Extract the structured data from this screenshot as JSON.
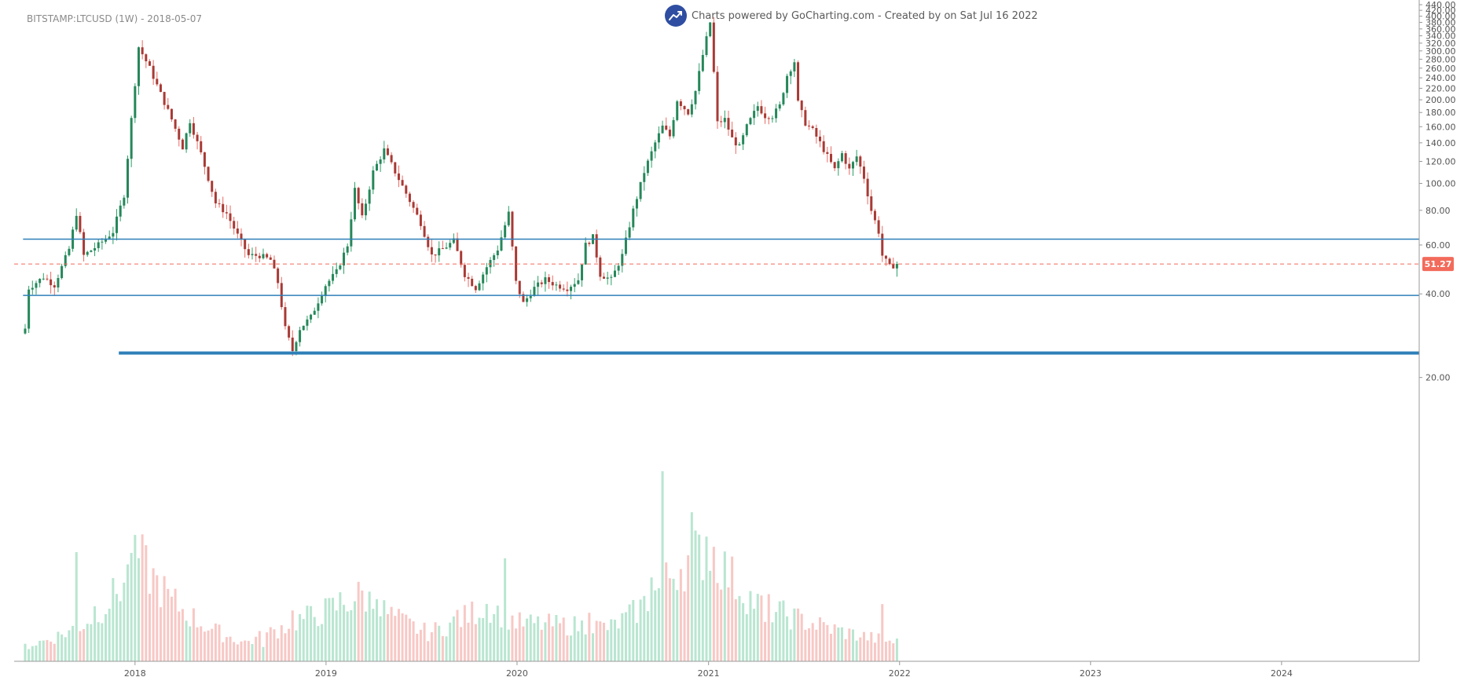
{
  "header": {
    "symbol_title": "BITSTAMP:LTCUSD (1W) - 2018-05-07",
    "watermark_text": "Charts powered by GoCharting.com - Created by  on Sat Jul 16 2022",
    "logo_icon": "chart-trend-icon"
  },
  "colors": {
    "up": "#26875a",
    "down": "#a83a35",
    "up_wick": "#2e9e68",
    "down_wick": "#e86a62",
    "volume_up": "#b9e6d1",
    "volume_down": "#f7c8c5",
    "level_line": "#2e7fb8",
    "last_price": "#f26b5b"
  },
  "chart_data": {
    "type": "candlestick",
    "symbol": "BITSTAMP:LTCUSD",
    "interval": "1W",
    "y_scale": "log",
    "ylim": [
      14.5,
      440
    ],
    "y_ticks": [
      20,
      40,
      60,
      80,
      100,
      120,
      140,
      160,
      180,
      200,
      220,
      240,
      260,
      280,
      300,
      320,
      340,
      360,
      380,
      400,
      420,
      440
    ],
    "x_ticks": [
      "2018",
      "2019",
      "2020",
      "2021",
      "2022",
      "2023",
      "2024"
    ],
    "x_range": [
      "2017-05-15",
      "2024-09-20"
    ],
    "grid": false,
    "last_price": 51.27,
    "last_price_label": "51.27",
    "horizontal_levels": [
      {
        "price": 63,
        "from": "2017-06-01",
        "to": "2024-09-20",
        "weight": "thin"
      },
      {
        "price": 39.5,
        "from": "2017-06-01",
        "to": "2024-09-20",
        "weight": "thin"
      },
      {
        "price": 24.5,
        "from": "2017-12-01",
        "to": "2024-09-20",
        "weight": "thick"
      }
    ],
    "trajectory_start": "2017-06-05",
    "weeks_count": 267,
    "price_path": [
      [
        0,
        30
      ],
      [
        1,
        42
      ],
      [
        5,
        46
      ],
      [
        8,
        43
      ],
      [
        12,
        58
      ],
      [
        14,
        78
      ],
      [
        16,
        55
      ],
      [
        20,
        60
      ],
      [
        24,
        67
      ],
      [
        27,
        91
      ],
      [
        29,
        170
      ],
      [
        31,
        310
      ],
      [
        34,
        260
      ],
      [
        37,
        210
      ],
      [
        40,
        170
      ],
      [
        43,
        135
      ],
      [
        45,
        168
      ],
      [
        48,
        128
      ],
      [
        52,
        85
      ],
      [
        55,
        78
      ],
      [
        58,
        65
      ],
      [
        61,
        55
      ],
      [
        64,
        55
      ],
      [
        67,
        53
      ],
      [
        69,
        44
      ],
      [
        71,
        30
      ],
      [
        73,
        25
      ],
      [
        75,
        30
      ],
      [
        78,
        33
      ],
      [
        82,
        43
      ],
      [
        85,
        48
      ],
      [
        88,
        60
      ],
      [
        90,
        95
      ],
      [
        92,
        75
      ],
      [
        95,
        110
      ],
      [
        98,
        132
      ],
      [
        101,
        110
      ],
      [
        104,
        92
      ],
      [
        108,
        72
      ],
      [
        111,
        55
      ],
      [
        114,
        58
      ],
      [
        117,
        62
      ],
      [
        120,
        47
      ],
      [
        123,
        42
      ],
      [
        126,
        50
      ],
      [
        129,
        58
      ],
      [
        132,
        78
      ],
      [
        134,
        44
      ],
      [
        136,
        37
      ],
      [
        139,
        42
      ],
      [
        142,
        45
      ],
      [
        145,
        43
      ],
      [
        148,
        42
      ],
      [
        151,
        45
      ],
      [
        153,
        60
      ],
      [
        155,
        64
      ],
      [
        157,
        47
      ],
      [
        160,
        45
      ],
      [
        163,
        55
      ],
      [
        166,
        80
      ],
      [
        169,
        110
      ],
      [
        172,
        140
      ],
      [
        174,
        160
      ],
      [
        176,
        148
      ],
      [
        178,
        200
      ],
      [
        181,
        180
      ],
      [
        183,
        215
      ],
      [
        185,
        290
      ],
      [
        187,
        380
      ],
      [
        189,
        165
      ],
      [
        191,
        170
      ],
      [
        193,
        145
      ],
      [
        195,
        135
      ],
      [
        197,
        160
      ],
      [
        200,
        190
      ],
      [
        202,
        175
      ],
      [
        204,
        175
      ],
      [
        206,
        190
      ],
      [
        208,
        245
      ],
      [
        210,
        275
      ],
      [
        211,
        195
      ],
      [
        213,
        165
      ],
      [
        215,
        155
      ],
      [
        217,
        140
      ],
      [
        219,
        125
      ],
      [
        221,
        112
      ],
      [
        223,
        128
      ],
      [
        225,
        112
      ],
      [
        227,
        125
      ],
      [
        229,
        105
      ],
      [
        231,
        80
      ],
      [
        233,
        67
      ],
      [
        234,
        55
      ],
      [
        236,
        50
      ],
      [
        238,
        51.27
      ]
    ],
    "volume_path": [
      [
        0,
        0.08
      ],
      [
        16,
        0.2
      ],
      [
        31,
        0.55
      ],
      [
        60,
        0.1
      ],
      [
        72,
        0.2
      ],
      [
        92,
        0.35
      ],
      [
        110,
        0.15
      ],
      [
        126,
        0.3
      ],
      [
        135,
        0.2
      ],
      [
        160,
        0.18
      ],
      [
        178,
        0.5
      ],
      [
        187,
        0.6
      ],
      [
        200,
        0.3
      ],
      [
        215,
        0.2
      ],
      [
        238,
        0.1
      ]
    ],
    "volume_spikes": [
      [
        14,
        0.56
      ],
      [
        19,
        0.27
      ],
      [
        29,
        0.66
      ],
      [
        40,
        0.3
      ],
      [
        65,
        0.1
      ],
      [
        73,
        0.24
      ],
      [
        86,
        0.31
      ],
      [
        96,
        0.46
      ],
      [
        118,
        0.25
      ],
      [
        131,
        0.44
      ],
      [
        154,
        0.36
      ],
      [
        171,
        0.56
      ],
      [
        174,
        1.0
      ],
      [
        182,
        0.66
      ],
      [
        186,
        0.67
      ],
      [
        189,
        0.54
      ],
      [
        199,
        0.32
      ],
      [
        202,
        0.2
      ],
      [
        234,
        0.26
      ]
    ]
  }
}
